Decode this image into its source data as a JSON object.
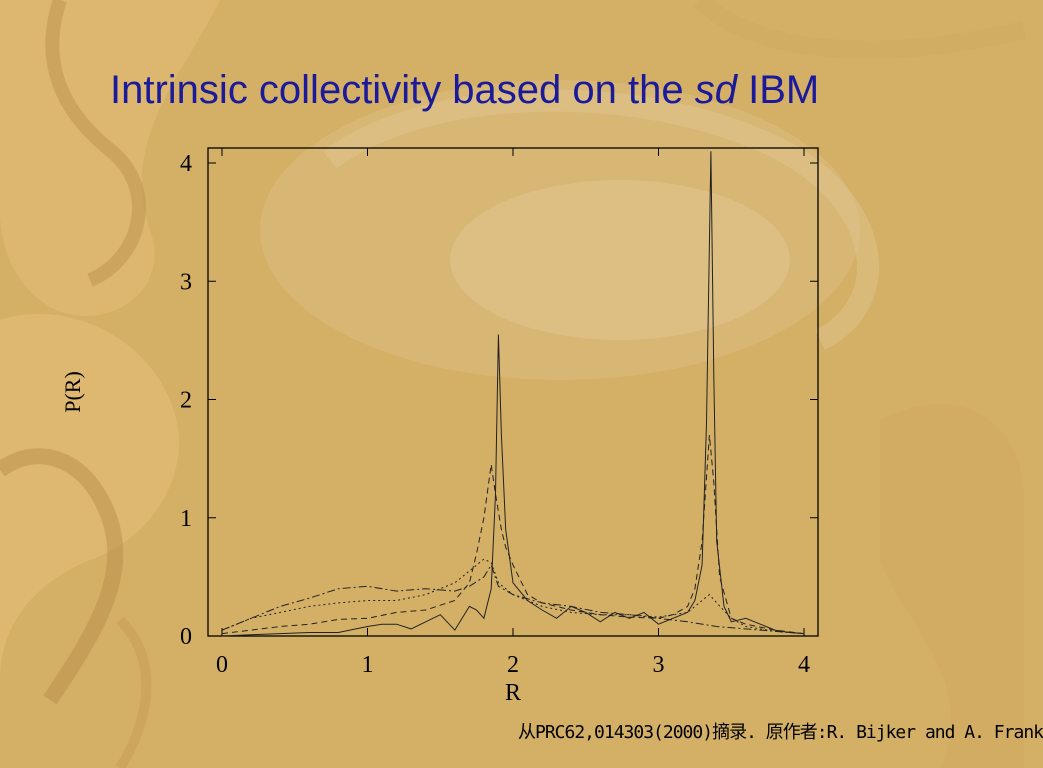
{
  "slide": {
    "title_main": "Intrinsic collectivity based on the ",
    "title_italic": "sd",
    "title_end": " IBM",
    "credit": "从PRC62,014303(2000)摘录. 原作者:R. Bijker and A. Frank",
    "background_color": "#d4b066",
    "title_color": "#1a1a9a"
  },
  "chart_data": {
    "type": "line",
    "xlabel": "R",
    "ylabel": "P(R)",
    "xlim": [
      0,
      4
    ],
    "ylim": [
      0,
      4
    ],
    "xticks": [
      "0",
      "1",
      "2",
      "3",
      "4"
    ],
    "yticks": [
      "0",
      "1",
      "2",
      "3",
      "4"
    ],
    "grid": false,
    "series": [
      {
        "style": "solid",
        "x": [
          0,
          0.2,
          0.4,
          0.6,
          0.8,
          1.0,
          1.1,
          1.2,
          1.3,
          1.4,
          1.5,
          1.6,
          1.7,
          1.75,
          1.8,
          1.85,
          1.88,
          1.9,
          1.92,
          1.95,
          2.0,
          2.1,
          2.2,
          2.3,
          2.4,
          2.5,
          2.6,
          2.7,
          2.8,
          2.9,
          3.0,
          3.1,
          3.2,
          3.25,
          3.3,
          3.33,
          3.36,
          3.38,
          3.4,
          3.45,
          3.5,
          3.6,
          3.7,
          3.8,
          3.9,
          4.0
        ],
        "y": [
          0.0,
          0.01,
          0.02,
          0.03,
          0.03,
          0.08,
          0.1,
          0.1,
          0.06,
          0.12,
          0.18,
          0.05,
          0.25,
          0.22,
          0.15,
          0.4,
          1.2,
          2.55,
          1.7,
          0.9,
          0.45,
          0.3,
          0.22,
          0.15,
          0.25,
          0.2,
          0.12,
          0.2,
          0.15,
          0.2,
          0.1,
          0.15,
          0.2,
          0.3,
          0.6,
          1.8,
          4.1,
          2.2,
          0.8,
          0.25,
          0.12,
          0.15,
          0.1,
          0.05,
          0.03,
          0.02
        ]
      },
      {
        "style": "dashed",
        "x": [
          0,
          0.2,
          0.4,
          0.6,
          0.8,
          1.0,
          1.2,
          1.4,
          1.6,
          1.7,
          1.75,
          1.8,
          1.85,
          1.88,
          1.92,
          1.95,
          2.0,
          2.1,
          2.2,
          2.4,
          2.6,
          2.8,
          3.0,
          3.1,
          3.2,
          3.25,
          3.3,
          3.35,
          3.38,
          3.42,
          3.5,
          3.6,
          3.8,
          4.0
        ],
        "y": [
          0.02,
          0.05,
          0.08,
          0.1,
          0.14,
          0.15,
          0.2,
          0.22,
          0.3,
          0.45,
          0.7,
          1.0,
          1.45,
          1.2,
          0.9,
          0.75,
          0.6,
          0.35,
          0.28,
          0.22,
          0.18,
          0.16,
          0.15,
          0.18,
          0.25,
          0.4,
          0.8,
          1.7,
          1.3,
          0.5,
          0.15,
          0.1,
          0.05,
          0.02
        ]
      },
      {
        "style": "dashdot",
        "x": [
          0,
          0.1,
          0.2,
          0.4,
          0.6,
          0.8,
          1.0,
          1.2,
          1.4,
          1.6,
          1.7,
          1.8,
          1.85,
          1.9,
          2.0,
          2.2,
          2.4,
          2.6,
          2.8,
          3.0,
          3.2,
          3.4,
          3.6,
          3.8,
          4.0
        ],
        "y": [
          0.05,
          0.1,
          0.15,
          0.25,
          0.32,
          0.4,
          0.42,
          0.38,
          0.4,
          0.38,
          0.42,
          0.5,
          0.6,
          0.42,
          0.35,
          0.28,
          0.25,
          0.2,
          0.18,
          0.15,
          0.12,
          0.08,
          0.06,
          0.04,
          0.02
        ]
      },
      {
        "style": "dotted",
        "x": [
          0,
          0.2,
          0.4,
          0.6,
          0.8,
          1.0,
          1.2,
          1.4,
          1.6,
          1.7,
          1.8,
          1.85,
          1.9,
          2.0,
          2.2,
          2.4,
          2.6,
          2.8,
          3.0,
          3.2,
          3.3,
          3.35,
          3.4,
          3.5,
          3.6,
          3.8,
          4.0
        ],
        "y": [
          0.05,
          0.15,
          0.2,
          0.25,
          0.28,
          0.3,
          0.3,
          0.35,
          0.45,
          0.55,
          0.65,
          0.62,
          0.45,
          0.35,
          0.25,
          0.2,
          0.18,
          0.18,
          0.16,
          0.2,
          0.3,
          0.35,
          0.28,
          0.15,
          0.08,
          0.04,
          0.02
        ]
      }
    ]
  }
}
